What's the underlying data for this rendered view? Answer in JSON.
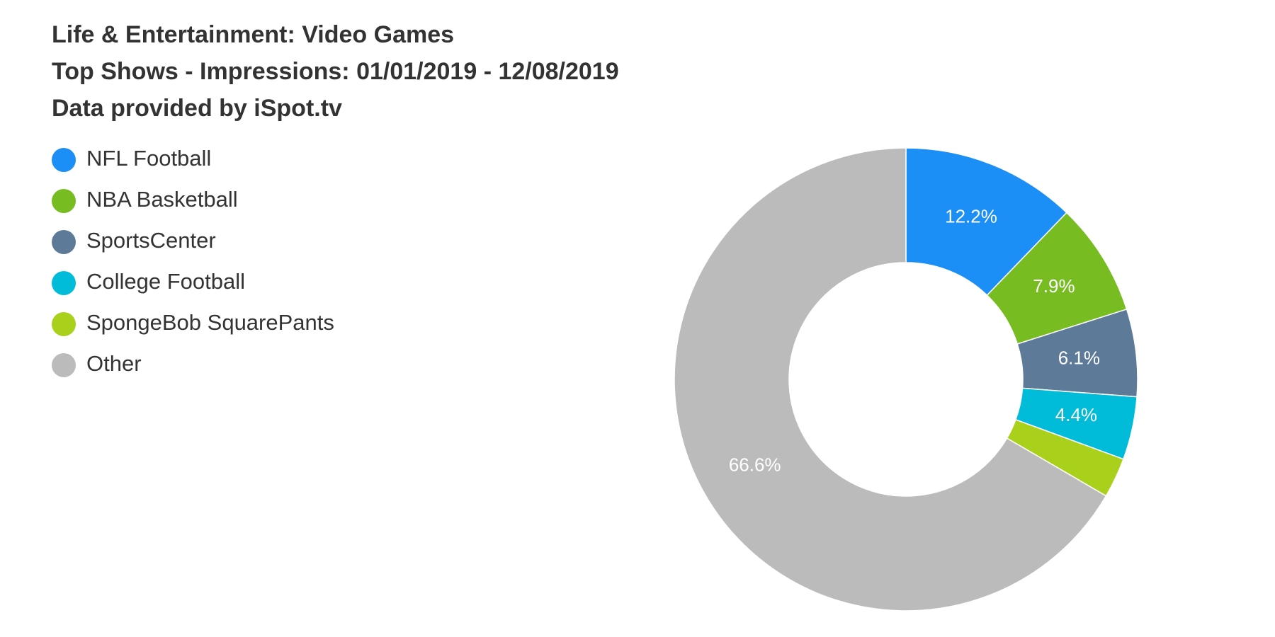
{
  "chart_data": {
    "type": "donut",
    "title": "Life & Entertainment: Video Games",
    "subtitle": "Top Shows - Impressions: 01/01/2019 - 12/08/2019",
    "source": "Data provided by iSpot.tv",
    "categories": [
      "NFL Football",
      "NBA Basketball",
      "SportsCenter",
      "College Football",
      "SpongeBob SquarePants",
      "Other"
    ],
    "values": [
      12.2,
      7.9,
      6.1,
      4.4,
      2.8,
      66.6
    ],
    "value_labels": [
      "12.2%",
      "7.9%",
      "6.1%",
      "4.4%",
      null,
      "66.6%"
    ],
    "colors": [
      "#1b8ff6",
      "#77bd22",
      "#5d7b99",
      "#00bcd9",
      "#a9d11c",
      "#bbbbbb"
    ],
    "legend": "top-left"
  }
}
